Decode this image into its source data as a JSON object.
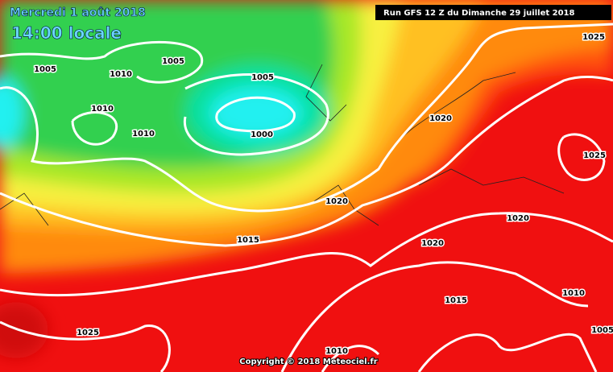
{
  "header": {
    "date": "Mercredi 1 août 2018",
    "time": "14:00 locale",
    "run": "Run GFS 12 Z du Dimanche 29 juillet 2018"
  },
  "isobar_labels": [
    "1005",
    "1010",
    "1005",
    "1010",
    "1010",
    "1005",
    "1000",
    "1020",
    "1025",
    "1025",
    "1020",
    "1020",
    "1015",
    "1020",
    "1015",
    "1010",
    "1025",
    "1010",
    "1005"
  ],
  "footer": {
    "copyright": "Copyright © 2018 Meteociel.fr"
  }
}
